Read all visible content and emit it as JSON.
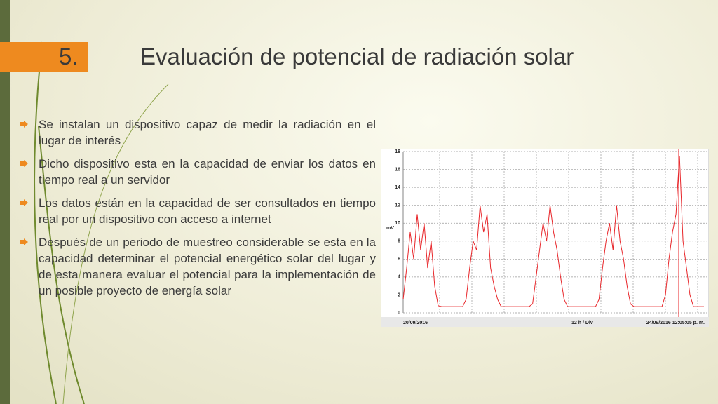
{
  "slide": {
    "number": "5.",
    "title": "Evaluación de potencial de radiación solar",
    "bullets": [
      "Se instalan un dispositivo capaz de medir la radiación en el lugar de interés",
      "Dicho dispositivo esta en la capacidad de enviar los datos en tiempo real a un servidor",
      "Los datos están en la capacidad de ser consultados en tiempo real por un dispositivo con acceso a internet",
      "Después de un periodo de muestreo considerable se esta en la capacidad determinar el potencial energético solar del lugar y de esta manera evaluar el potencial para la implementación de un posible proyecto de energía solar"
    ]
  },
  "chart_data": {
    "type": "line",
    "ylabel": "mV",
    "start_label": "20/09/2016",
    "division_label": "12 h / Div",
    "end_label": "24/09/2016 12:05:05 p. m.",
    "color": "#e8262a",
    "ylim": [
      0,
      18
    ],
    "yticks": [
      0,
      2,
      4,
      6,
      8,
      10,
      12,
      14,
      16,
      18
    ],
    "grid": true,
    "values": [
      1.5,
      5,
      9,
      6,
      11,
      7,
      10,
      5,
      8,
      3,
      0.8,
      0.7,
      0.7,
      0.7,
      0.7,
      0.7,
      0.7,
      0.7,
      1.5,
      5,
      8,
      7,
      12,
      9,
      11,
      5,
      3,
      1.5,
      0.7,
      0.7,
      0.7,
      0.7,
      0.7,
      0.7,
      0.7,
      0.7,
      0.7,
      1,
      4,
      7,
      10,
      8,
      12,
      9,
      7,
      4,
      1.5,
      0.7,
      0.7,
      0.7,
      0.7,
      0.7,
      0.7,
      0.7,
      0.7,
      0.7,
      1.5,
      5,
      8,
      10,
      7,
      12,
      8,
      6,
      3,
      1,
      0.7,
      0.7,
      0.7,
      0.7,
      0.7,
      0.7,
      0.7,
      0.7,
      0.7,
      2,
      6,
      9,
      11,
      17.5,
      8,
      5,
      2,
      0.7,
      0.7,
      0.7,
      0.7
    ]
  }
}
